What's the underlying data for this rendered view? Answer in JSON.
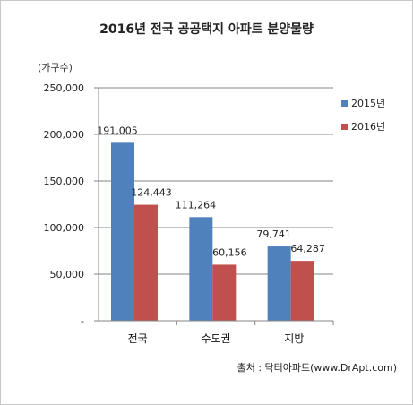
{
  "chart_data": {
    "type": "bar",
    "title": "2016년 전국 공공택지 아파트 분양물량",
    "yunit": "(가구수)",
    "categories": [
      "전국",
      "수도권",
      "지방"
    ],
    "series": [
      {
        "name": "2015년",
        "values": [
          191005,
          111264,
          79741
        ],
        "labels": [
          "191,005",
          "111,264",
          "79,741"
        ],
        "color": "#4f81bd"
      },
      {
        "name": "2016년",
        "values": [
          124443,
          60156,
          64287
        ],
        "labels": [
          "124,443",
          "60,156",
          "64,287"
        ],
        "color": "#c0504d"
      }
    ],
    "ylim": [
      0,
      250000
    ],
    "yticks": [
      {
        "value": 0,
        "label": "-"
      },
      {
        "value": 50000,
        "label": "50,000"
      },
      {
        "value": 100000,
        "label": "100,000"
      },
      {
        "value": 150000,
        "label": "150,000"
      },
      {
        "value": 200000,
        "label": "200,000"
      },
      {
        "value": 250000,
        "label": "250,000"
      }
    ],
    "grid": true,
    "legend": "right"
  },
  "source": "출처 : 닥터아파트(www.DrApt.com)"
}
